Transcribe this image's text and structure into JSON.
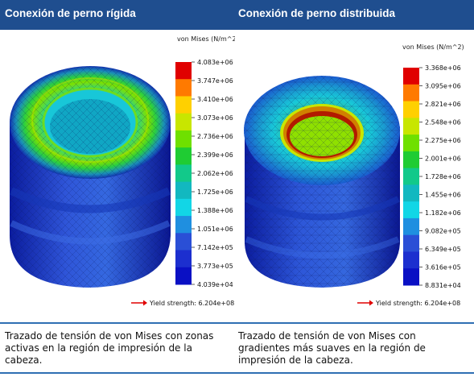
{
  "header": {
    "left_title": "Conexión de perno rígida",
    "right_title": "Conexión de perno distribuida"
  },
  "left_plot": {
    "legend_title": "von Mises (N/m^2)",
    "ticks": [
      "4.083e+06",
      "3.747e+06",
      "3.410e+06",
      "3.073e+06",
      "2.736e+06",
      "2.399e+06",
      "2.062e+06",
      "1.725e+06",
      "1.388e+06",
      "1.051e+06",
      "7.142e+05",
      "3.773e+05",
      "4.039e+04"
    ],
    "yield_label": "Yield strength: 6.204e+08"
  },
  "right_plot": {
    "legend_title": "von Mises (N/m^2)",
    "ticks": [
      "3.368e+06",
      "3.095e+06",
      "2.821e+06",
      "2.548e+06",
      "2.275e+06",
      "2.001e+06",
      "1.728e+06",
      "1.455e+06",
      "1.182e+06",
      "9.082e+05",
      "6.349e+05",
      "3.616e+05",
      "8.831e+04"
    ],
    "yield_label": "Yield strength: 6.204e+08"
  },
  "captions": {
    "left": "Trazado de tensión de von Mises con zonas activas en la región de impresión de la cabeza.",
    "right": "Trazado de tensión de von Mises con gradientes más suaves en la región de impresión de la cabeza."
  },
  "colors": {
    "header_bg": "#1f4e8f",
    "scale": [
      "#e00000",
      "#ff7a00",
      "#ffd000",
      "#c8e600",
      "#6fe000",
      "#1fcc33",
      "#12c98a",
      "#12b8c0",
      "#12d6e6",
      "#1f8fe0",
      "#2a4fd6",
      "#1c2fcf",
      "#0a10c4"
    ]
  }
}
